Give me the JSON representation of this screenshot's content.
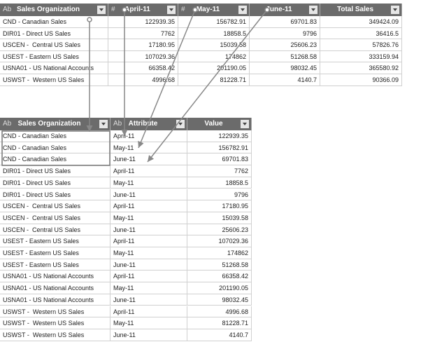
{
  "top_table": {
    "headers": [
      {
        "icon": "Ab",
        "label": "Sales Organization"
      },
      {
        "icon": "#",
        "label": "April-11"
      },
      {
        "icon": "#",
        "label": "May-11"
      },
      {
        "label": "June-11"
      },
      {
        "label": "Total Sales"
      }
    ],
    "rows": [
      [
        "CND - Canadian Sales",
        "122939.35",
        "156782.91",
        "69701.83",
        "349424.09"
      ],
      [
        "DIR01 - Direct US Sales",
        "7762",
        "18858.5",
        "9796",
        "36416.5"
      ],
      [
        "USCEN -  Central US Sales",
        "17180.95",
        "15039.58",
        "25606.23",
        "57826.76"
      ],
      [
        "USEST - Eastern US Sales",
        "107029.36",
        "174862",
        "51268.58",
        "333159.94"
      ],
      [
        "USNA01 - US National Accounts",
        "66358.42",
        "201190.05",
        "98032.45",
        "365580.92"
      ],
      [
        "USWST -  Western US Sales",
        "4996.68",
        "81228.71",
        "4140.7",
        "90366.09"
      ]
    ]
  },
  "bottom_table": {
    "headers": [
      {
        "icon": "Ab",
        "label": "Sales Organization"
      },
      {
        "icon": "Ab",
        "label": "Attribute"
      },
      {
        "label": "Value"
      }
    ],
    "rows": [
      [
        "CND - Canadian Sales",
        "April-11",
        "122939.35"
      ],
      [
        "CND - Canadian Sales",
        "May-11",
        "156782.91"
      ],
      [
        "CND - Canadian Sales",
        "June-11",
        "69701.83"
      ],
      [
        "DIR01 - Direct US Sales",
        "April-11",
        "7762"
      ],
      [
        "DIR01 - Direct US Sales",
        "May-11",
        "18858.5"
      ],
      [
        "DIR01 - Direct US Sales",
        "June-11",
        "9796"
      ],
      [
        "USCEN -  Central US Sales",
        "April-11",
        "17180.95"
      ],
      [
        "USCEN -  Central US Sales",
        "May-11",
        "15039.58"
      ],
      [
        "USCEN -  Central US Sales",
        "June-11",
        "25606.23"
      ],
      [
        "USEST - Eastern US Sales",
        "April-11",
        "107029.36"
      ],
      [
        "USEST - Eastern US Sales",
        "May-11",
        "174862"
      ],
      [
        "USEST - Eastern US Sales",
        "June-11",
        "51268.58"
      ],
      [
        "USNA01 - US National Accounts",
        "April-11",
        "66358.42"
      ],
      [
        "USNA01 - US National Accounts",
        "May-11",
        "201190.05"
      ],
      [
        "USNA01 - US National Accounts",
        "June-11",
        "98032.45"
      ],
      [
        "USWST -  Western US Sales",
        "April-11",
        "4996.68"
      ],
      [
        "USWST -  Western US Sales",
        "May-11",
        "81228.71"
      ],
      [
        "USWST -  Western US Sales",
        "June-11",
        "4140.7"
      ]
    ]
  }
}
